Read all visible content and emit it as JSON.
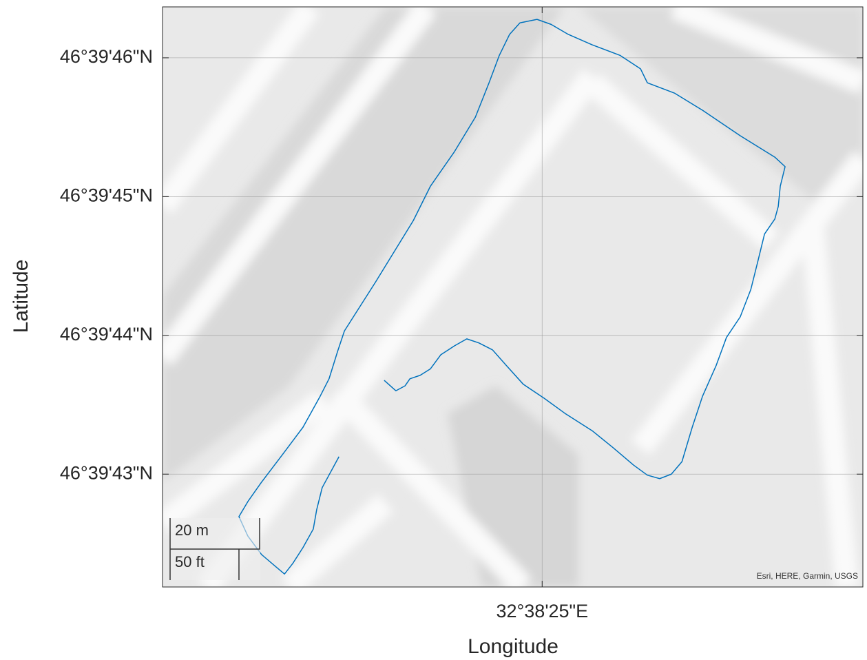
{
  "chart_data": {
    "type": "line",
    "xlabel": "Longitude",
    "ylabel": "Latitude",
    "color": "#0072bd",
    "grid": true,
    "xlim": [
      32.63917,
      32.641214
    ],
    "ylim": [
      46.661718,
      46.66288
    ],
    "xticks": [
      {
        "value": 32.640278,
        "label": "32°38'25\"E"
      }
    ],
    "yticks": [
      {
        "value": 46.661944,
        "label": "46°39'43\"N"
      },
      {
        "value": 46.662222,
        "label": "46°39'44\"N"
      },
      {
        "value": 46.6625,
        "label": "46°39'45\"N"
      },
      {
        "value": 46.662778,
        "label": "46°39'46\"N"
      }
    ],
    "x": [
      32.639685,
      32.639636,
      32.63962,
      32.63961,
      32.63958,
      32.63955,
      32.639526,
      32.6395,
      32.639459,
      32.639419,
      32.639393,
      32.639419,
      32.639459,
      32.63952,
      32.63958,
      32.63963,
      32.639656,
      32.639681,
      32.639701,
      32.639791,
      32.639902,
      32.639952,
      32.640022,
      32.640083,
      32.640123,
      32.640153,
      32.640183,
      32.640213,
      32.640263,
      32.640304,
      32.640354,
      32.640424,
      32.640505,
      32.640565,
      32.640585,
      32.640665,
      32.640746,
      32.640856,
      32.640957,
      32.640987,
      32.640973,
      32.640967,
      32.640957,
      32.640927,
      32.640907,
      32.640887,
      32.640856,
      32.640816,
      32.640786,
      32.640746,
      32.640716,
      32.640686,
      32.640655,
      32.640621,
      32.640585,
      32.640545,
      32.640485,
      32.640424,
      32.640344,
      32.640284,
      32.640223,
      32.640173,
      32.640133,
      32.640093,
      32.640058,
      32.640022,
      32.639982,
      32.639952,
      32.639922,
      32.639892,
      32.639878,
      32.639851,
      32.639817
    ],
    "values": [
      46.661979,
      46.661917,
      46.661873,
      46.661834,
      46.661797,
      46.661765,
      46.661744,
      46.661759,
      46.661783,
      46.66182,
      46.661859,
      46.661889,
      46.661928,
      46.661983,
      46.662038,
      46.6621,
      46.662135,
      46.66219,
      46.662231,
      46.662328,
      46.662452,
      46.662521,
      46.66259,
      46.662659,
      46.662728,
      46.662783,
      46.662825,
      46.662848,
      46.662855,
      46.662845,
      46.662825,
      46.662804,
      46.662783,
      46.662756,
      46.662728,
      46.662707,
      46.662673,
      46.662622,
      46.662579,
      46.66256,
      46.662521,
      46.66248,
      46.662455,
      46.662425,
      46.662369,
      46.662314,
      46.662259,
      46.662218,
      46.662162,
      46.6621,
      46.662038,
      46.661969,
      46.661944,
      46.661935,
      46.661942,
      46.661962,
      46.661997,
      46.662031,
      46.662066,
      46.662096,
      46.662124,
      46.662162,
      46.662193,
      46.662207,
      46.662215,
      46.662201,
      46.662183,
      46.662155,
      46.662142,
      46.662135,
      46.662121,
      46.662111,
      46.662132
    ],
    "scale_bar": [
      "20 m",
      "50 ft"
    ],
    "attribution": "Esri, HERE, Garmin, USGS"
  }
}
